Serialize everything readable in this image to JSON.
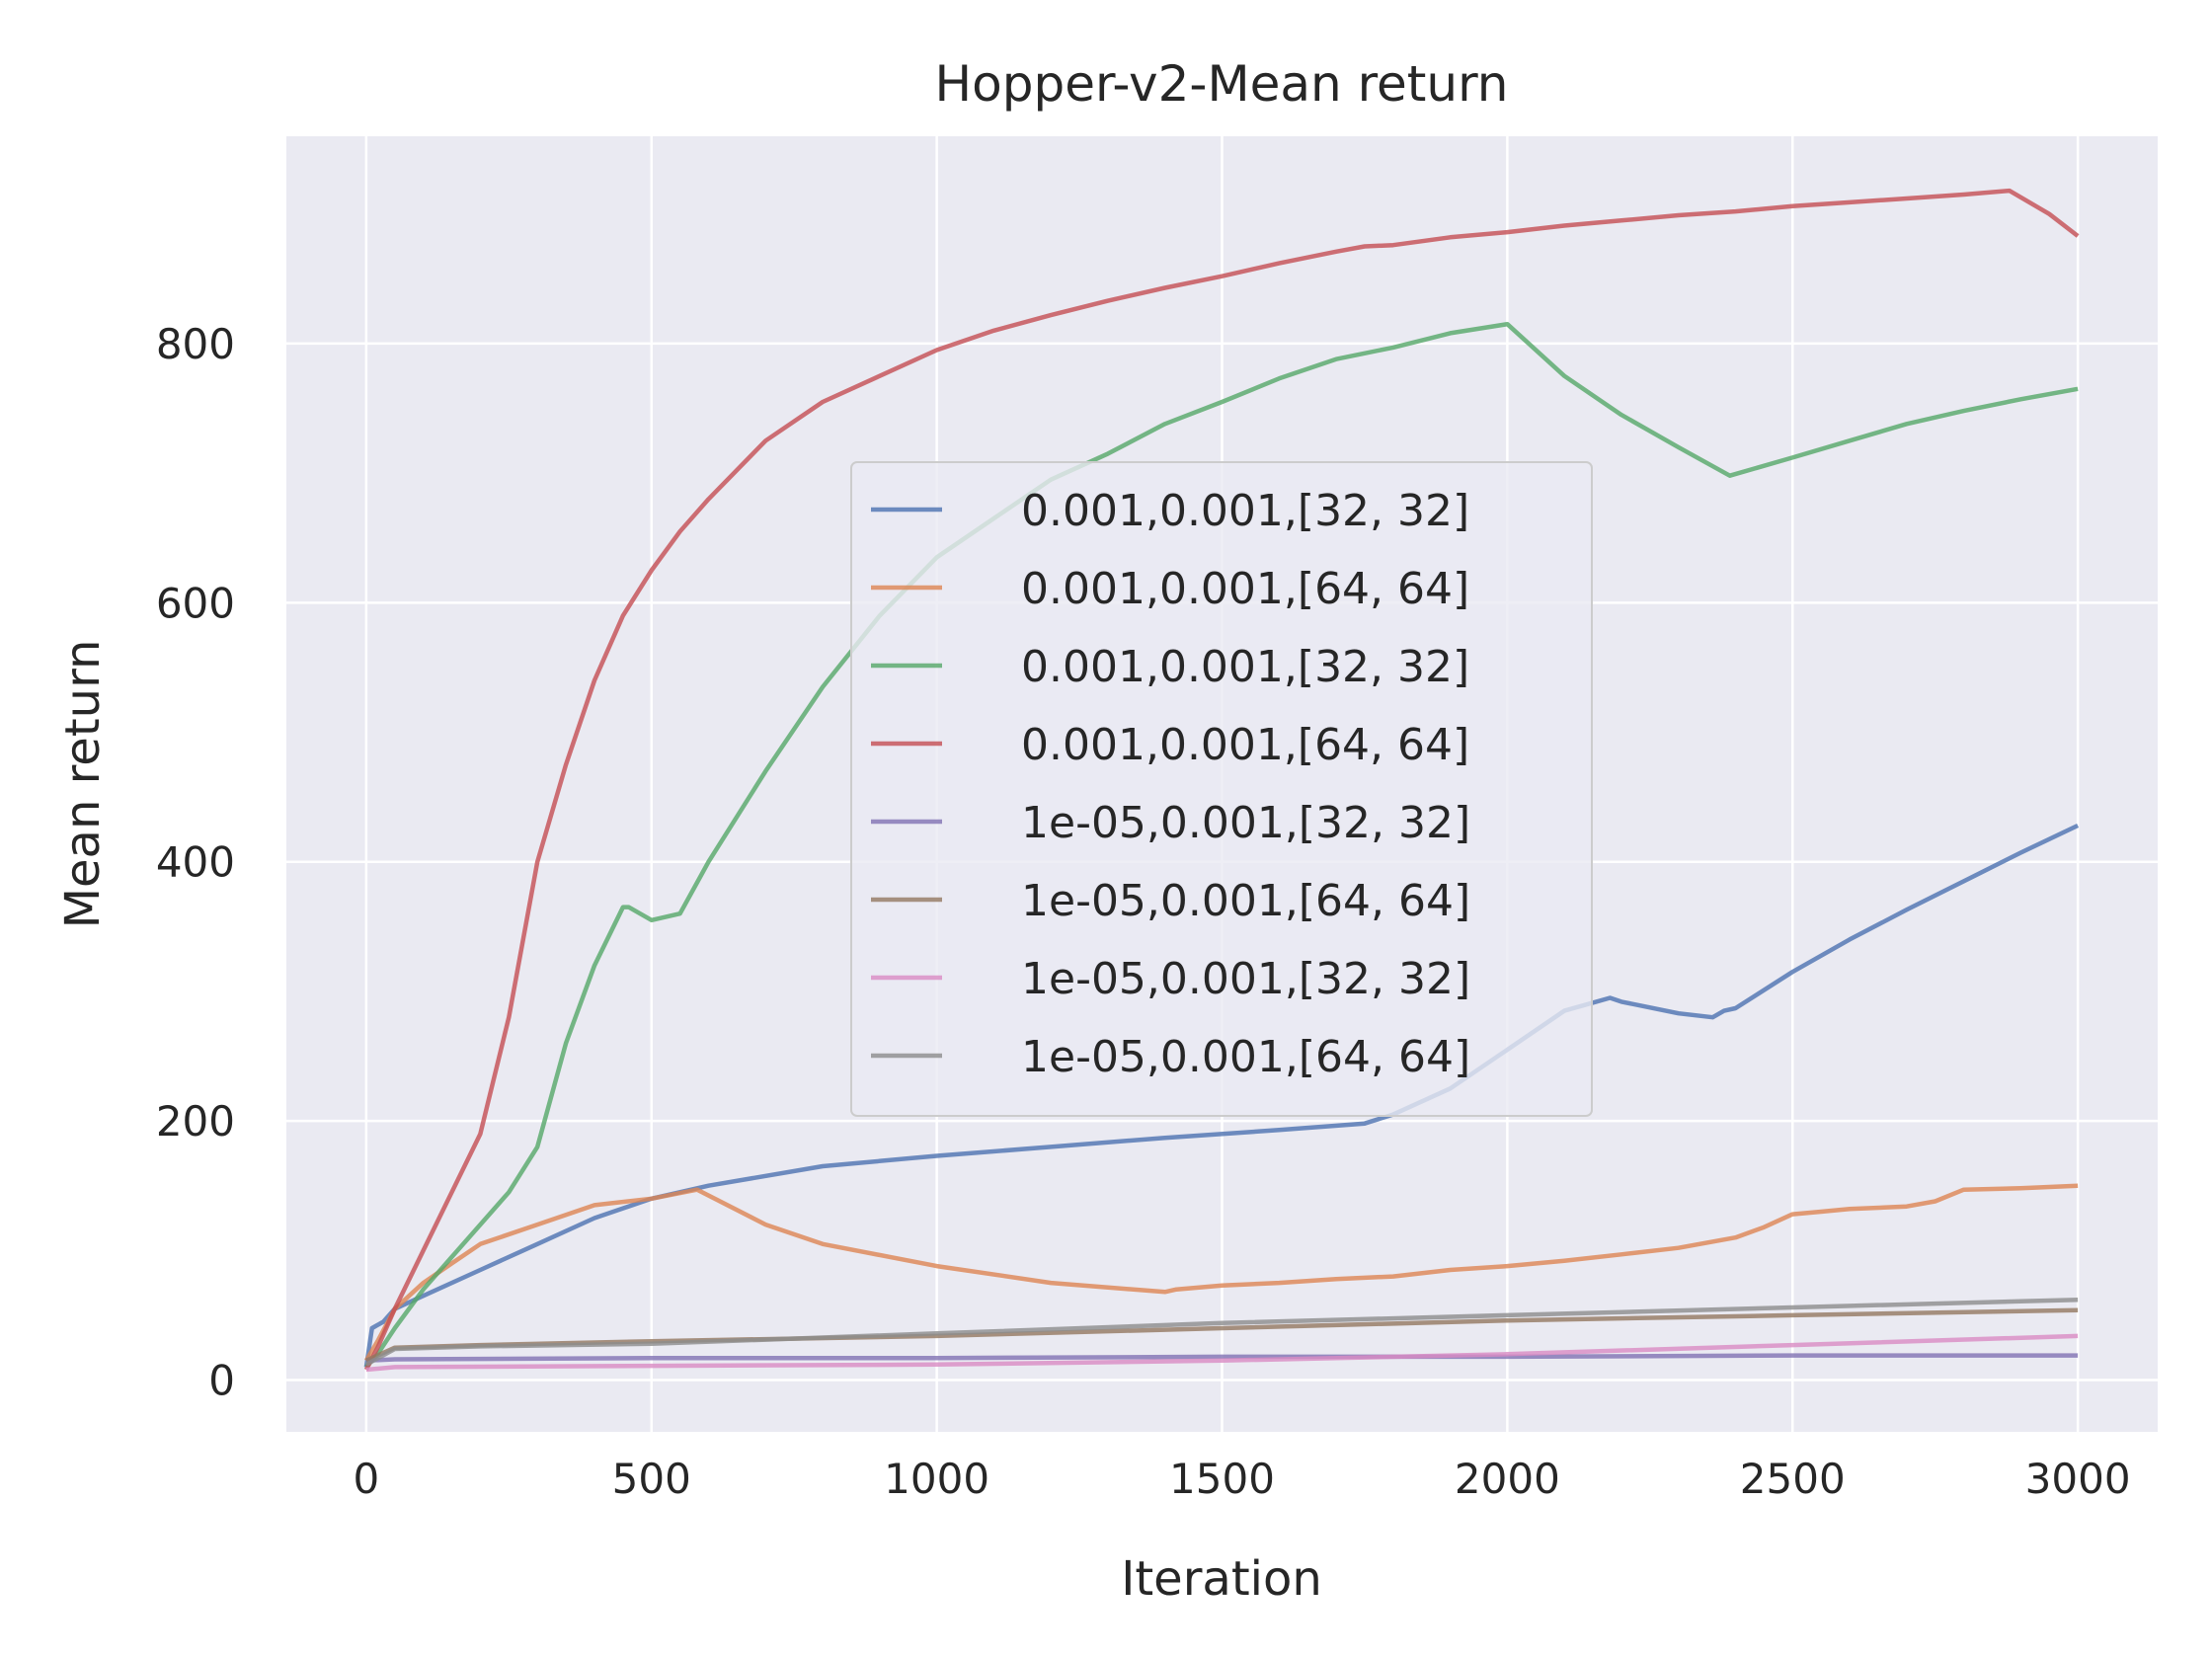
{
  "chart_data": {
    "type": "line",
    "title": "Hopper-v2-Mean return",
    "xlabel": "Iteration",
    "ylabel": "Mean return",
    "xlim": [
      -140,
      3140
    ],
    "ylim": [
      -40,
      960
    ],
    "xticks": [
      0,
      500,
      1000,
      1500,
      2000,
      2500,
      3000
    ],
    "yticks": [
      0,
      200,
      400,
      600,
      800
    ],
    "grid": true,
    "legend_position": "center-right",
    "colors": [
      "#4c72b0",
      "#dd8452",
      "#55a868",
      "#c44e52",
      "#8172b3",
      "#937860",
      "#da8bc3",
      "#8c8c8c"
    ],
    "series": [
      {
        "name": "0.001,0.001,[32, 32]",
        "x": [
          0,
          10,
          30,
          50,
          100,
          200,
          300,
          400,
          500,
          600,
          800,
          1000,
          1200,
          1400,
          1600,
          1750,
          1800,
          1900,
          2000,
          2100,
          2180,
          2200,
          2300,
          2360,
          2380,
          2400,
          2500,
          2600,
          2700,
          2800,
          2900,
          3000
        ],
        "y": [
          10,
          40,
          45,
          55,
          65,
          85,
          105,
          125,
          140,
          150,
          165,
          173,
          180,
          187,
          193,
          198,
          205,
          225,
          255,
          285,
          295,
          292,
          283,
          280,
          285,
          287,
          315,
          340,
          363,
          385,
          407,
          428
        ]
      },
      {
        "name": "0.001,0.001,[64, 64]",
        "x": [
          0,
          20,
          50,
          100,
          150,
          200,
          300,
          400,
          500,
          580,
          700,
          800,
          1000,
          1200,
          1400,
          1420,
          1500,
          1600,
          1700,
          1800,
          1900,
          2000,
          2100,
          2200,
          2300,
          2400,
          2450,
          2500,
          2550,
          2600,
          2700,
          2750,
          2800,
          2900,
          3000
        ],
        "y": [
          15,
          30,
          55,
          75,
          90,
          105,
          120,
          135,
          140,
          147,
          120,
          105,
          88,
          75,
          68,
          70,
          73,
          75,
          78,
          80,
          85,
          88,
          92,
          97,
          102,
          110,
          118,
          128,
          130,
          132,
          134,
          138,
          147,
          148,
          150
        ]
      },
      {
        "name": "0.001,0.001,[32, 32]",
        "x": [
          0,
          20,
          50,
          100,
          150,
          200,
          250,
          300,
          350,
          400,
          450,
          460,
          500,
          550,
          600,
          700,
          800,
          900,
          1000,
          1100,
          1200,
          1300,
          1400,
          1500,
          1600,
          1700,
          1800,
          1900,
          2000,
          2100,
          2200,
          2300,
          2390,
          2500,
          2600,
          2700,
          2800,
          2900,
          3000
        ],
        "y": [
          10,
          20,
          40,
          70,
          95,
          120,
          145,
          180,
          260,
          320,
          365,
          365,
          355,
          360,
          400,
          470,
          535,
          590,
          635,
          665,
          695,
          715,
          738,
          755,
          773,
          788,
          797,
          808,
          815,
          775,
          745,
          720,
          698,
          712,
          725,
          738,
          748,
          757,
          765
        ]
      },
      {
        "name": "0.001,0.001,[64, 64]",
        "x": [
          0,
          20,
          50,
          100,
          150,
          200,
          250,
          300,
          350,
          400,
          450,
          500,
          550,
          600,
          700,
          800,
          900,
          1000,
          1100,
          1200,
          1300,
          1400,
          1500,
          1600,
          1700,
          1750,
          1800,
          1900,
          2000,
          2100,
          2200,
          2300,
          2400,
          2500,
          2600,
          2700,
          2800,
          2880,
          2950,
          3000
        ],
        "y": [
          8,
          25,
          55,
          100,
          145,
          190,
          280,
          400,
          475,
          540,
          590,
          625,
          655,
          680,
          725,
          755,
          775,
          795,
          810,
          822,
          833,
          843,
          852,
          862,
          871,
          875,
          876,
          882,
          886,
          891,
          895,
          899,
          902,
          906,
          909,
          912,
          915,
          918,
          900,
          883
        ]
      },
      {
        "name": "1e-05,0.001,[32, 32]",
        "x": [
          0,
          50,
          500,
          1000,
          1500,
          2000,
          2500,
          3000
        ],
        "y": [
          15,
          16,
          17,
          17,
          18,
          18,
          19,
          19
        ]
      },
      {
        "name": "1e-05,0.001,[64, 64]",
        "x": [
          0,
          50,
          200,
          500,
          1000,
          1500,
          2000,
          2500,
          3000
        ],
        "y": [
          15,
          25,
          27,
          30,
          34,
          40,
          46,
          50,
          54
        ]
      },
      {
        "name": "1e-05,0.001,[32, 32]",
        "x": [
          0,
          50,
          500,
          1000,
          1500,
          2000,
          2500,
          3000
        ],
        "y": [
          8,
          10,
          11,
          12,
          15,
          20,
          27,
          34
        ]
      },
      {
        "name": "1e-05,0.001,[64, 64]",
        "x": [
          0,
          50,
          200,
          500,
          1000,
          1500,
          2000,
          2500,
          3000
        ],
        "y": [
          12,
          24,
          26,
          28,
          36,
          44,
          50,
          56,
          62
        ]
      }
    ]
  }
}
